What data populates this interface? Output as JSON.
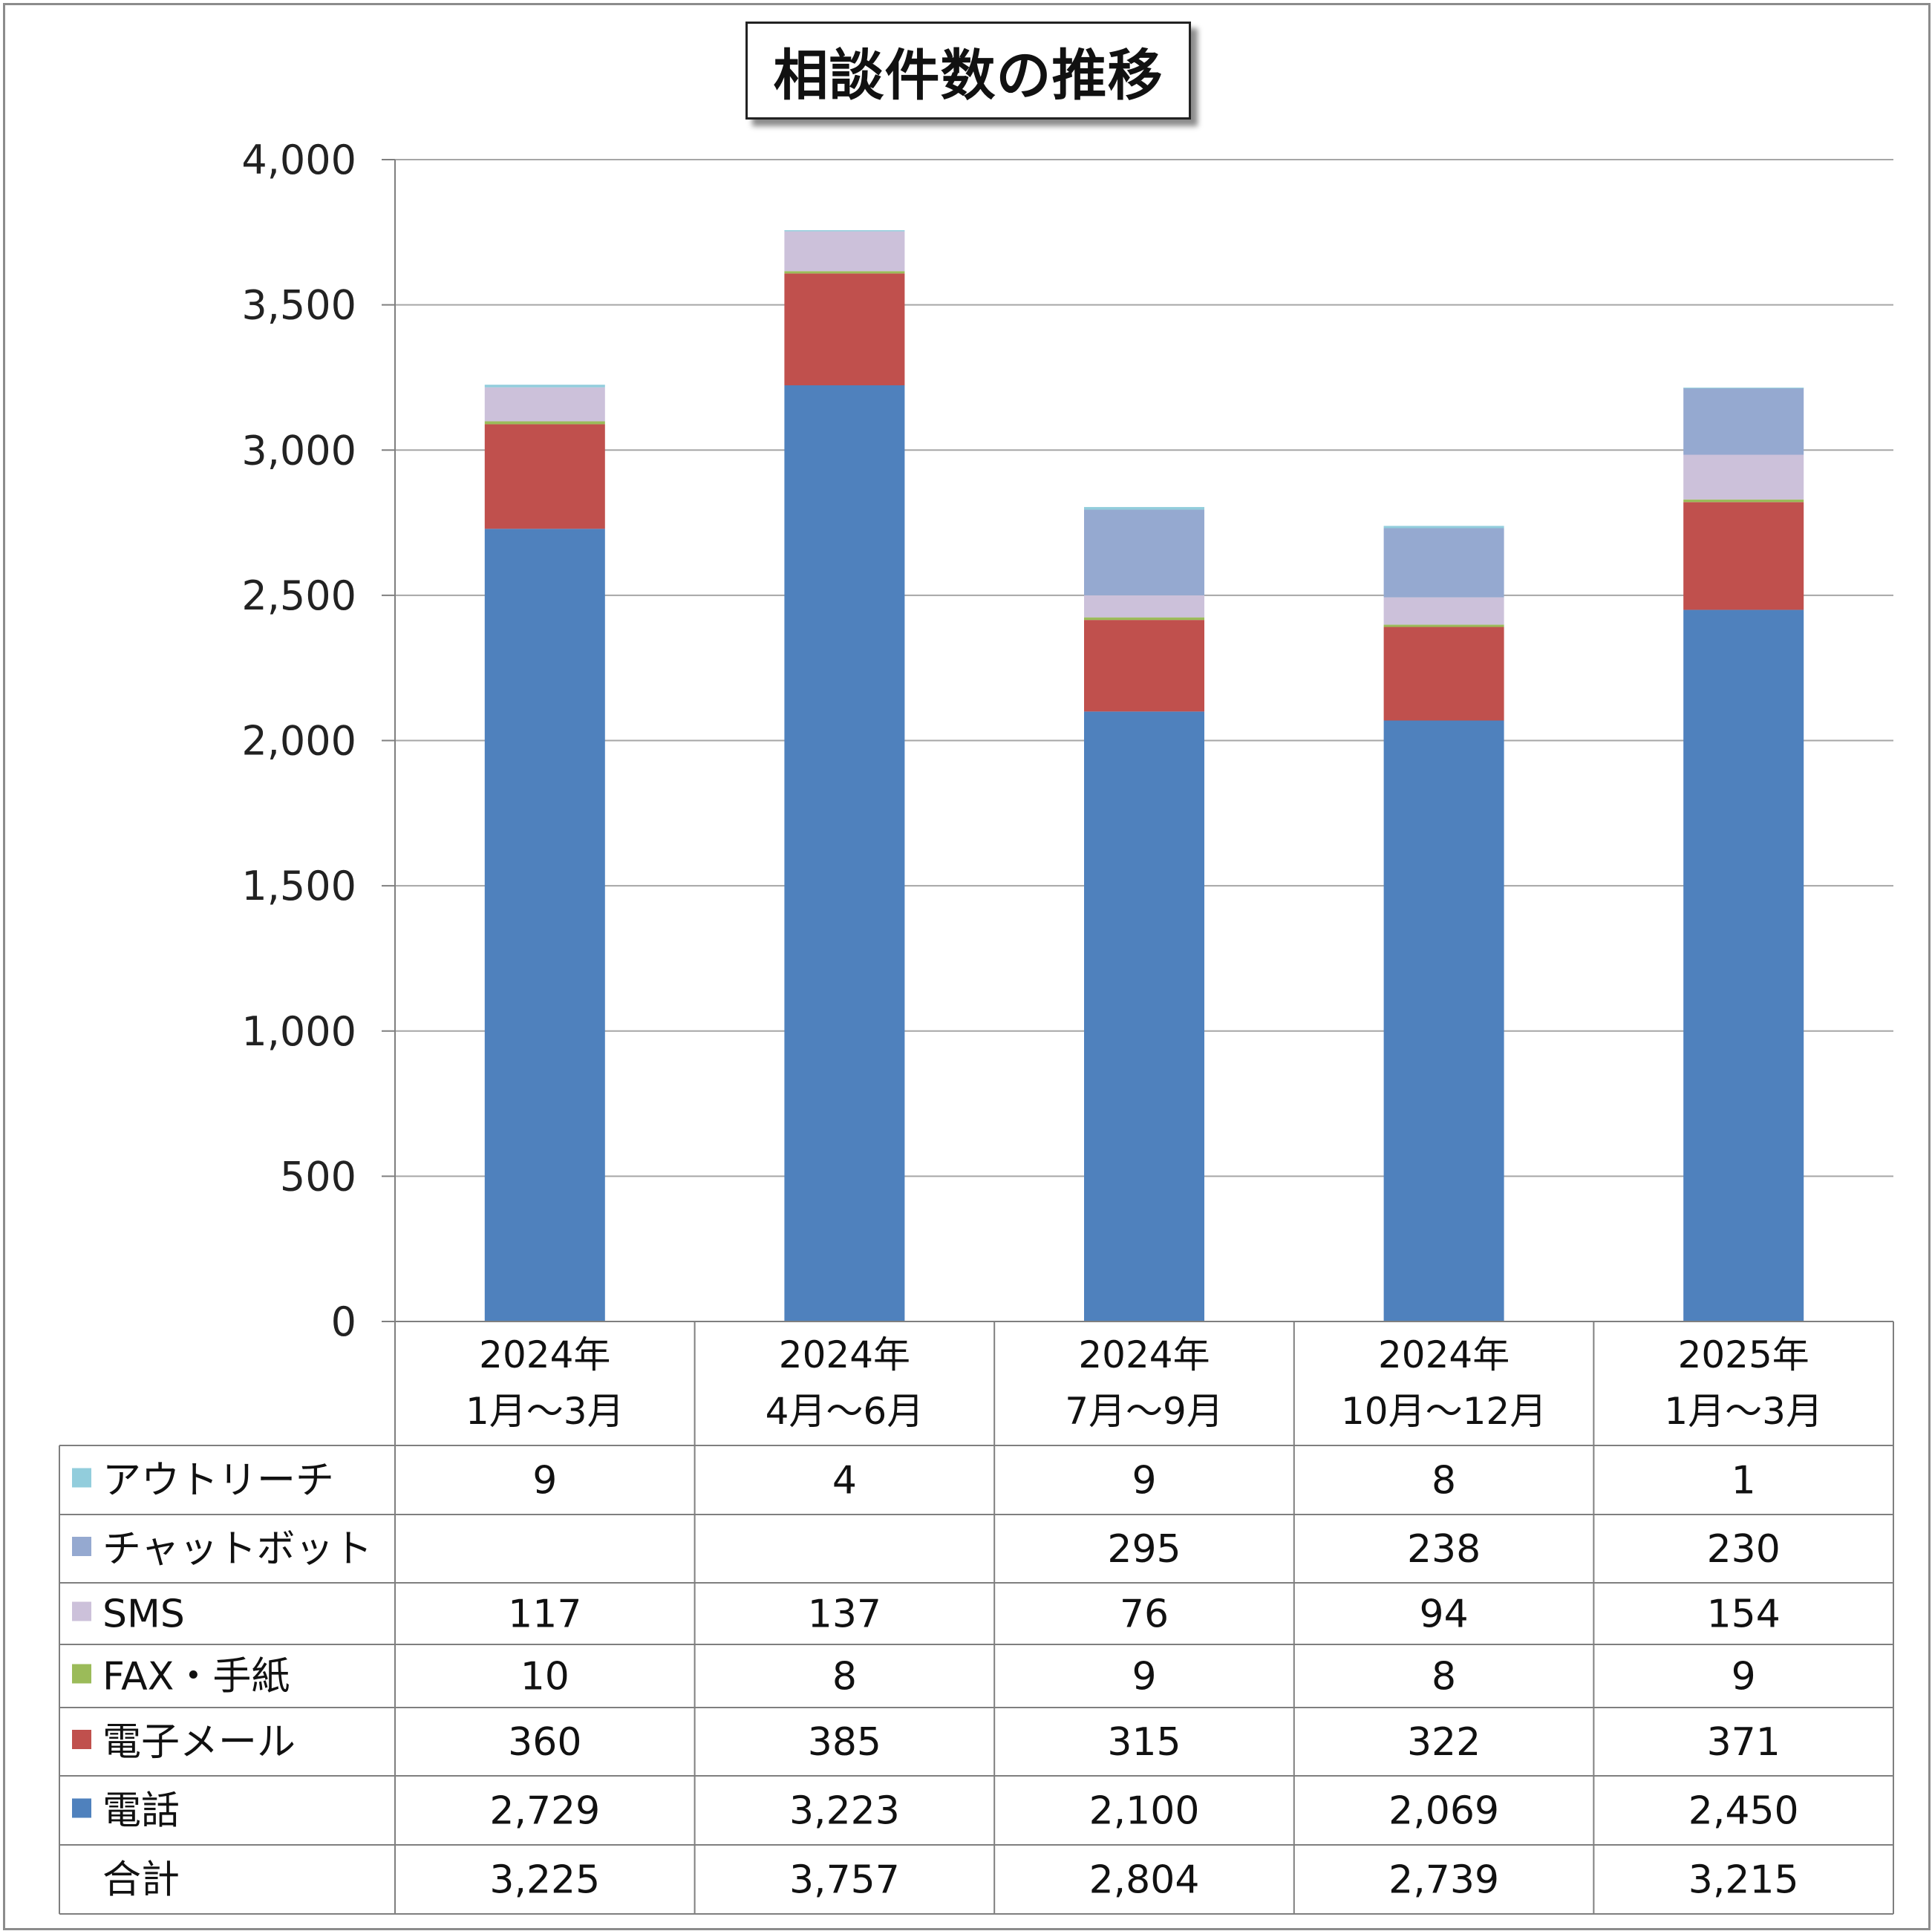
{
  "title": "相談件数の推移",
  "colors": {
    "outreach": "#92cddc",
    "chatbot": "#95a9d0",
    "sms": "#ccc1da",
    "fax": "#9bbb59",
    "email": "#c0504d",
    "phone": "#4f81bd",
    "grid": "#a6a6a6",
    "table_border": "#7f7f7f"
  },
  "table": {
    "total_label": "合計",
    "totals": [
      "3,225",
      "3,757",
      "2,804",
      "2,739",
      "3,215"
    ],
    "rows": [
      {
        "key": "outreach",
        "label": "アウトリーチ",
        "cells": [
          "9",
          "4",
          "9",
          "8",
          "1"
        ]
      },
      {
        "key": "chatbot",
        "label": "チャットボット",
        "cells": [
          "",
          "",
          "295",
          "238",
          "230"
        ]
      },
      {
        "key": "sms",
        "label": "SMS",
        "cells": [
          "117",
          "137",
          "76",
          "94",
          "154"
        ]
      },
      {
        "key": "fax",
        "label": "FAX・手紙",
        "cells": [
          "10",
          "8",
          "9",
          "8",
          "9"
        ]
      },
      {
        "key": "email",
        "label": "電子メール",
        "cells": [
          "360",
          "385",
          "315",
          "322",
          "371"
        ]
      },
      {
        "key": "phone",
        "label": "電話",
        "cells": [
          "2,729",
          "3,223",
          "2,100",
          "2,069",
          "2,450"
        ]
      }
    ]
  },
  "chart_data": {
    "type": "bar",
    "stacked": true,
    "title": "相談件数の推移",
    "categories": [
      [
        "2024年",
        "1月～3月"
      ],
      [
        "2024年",
        "4月～6月"
      ],
      [
        "2024年",
        "7月～9月"
      ],
      [
        "2024年",
        "10月～12月"
      ],
      [
        "2025年",
        "1月～3月"
      ]
    ],
    "yticks": [
      "0",
      "500",
      "1,000",
      "1,500",
      "2,000",
      "2,500",
      "3,000",
      "3,500",
      "4,000"
    ],
    "ylim": [
      0,
      4000
    ],
    "grid": true,
    "legend": "data-table",
    "series": [
      {
        "name": "電話",
        "key": "phone",
        "values": [
          2729,
          3223,
          2100,
          2069,
          2450
        ]
      },
      {
        "name": "電子メール",
        "key": "email",
        "values": [
          360,
          385,
          315,
          322,
          371
        ]
      },
      {
        "name": "FAX・手紙",
        "key": "fax",
        "values": [
          10,
          8,
          9,
          8,
          9
        ]
      },
      {
        "name": "SMS",
        "key": "sms",
        "values": [
          117,
          137,
          76,
          94,
          154
        ]
      },
      {
        "name": "チャットボット",
        "key": "chatbot",
        "values": [
          0,
          0,
          295,
          238,
          230
        ]
      },
      {
        "name": "アウトリーチ",
        "key": "outreach",
        "values": [
          9,
          4,
          9,
          8,
          1
        ]
      }
    ],
    "totals": [
      3225,
      3757,
      2804,
      2739,
      3215
    ]
  }
}
